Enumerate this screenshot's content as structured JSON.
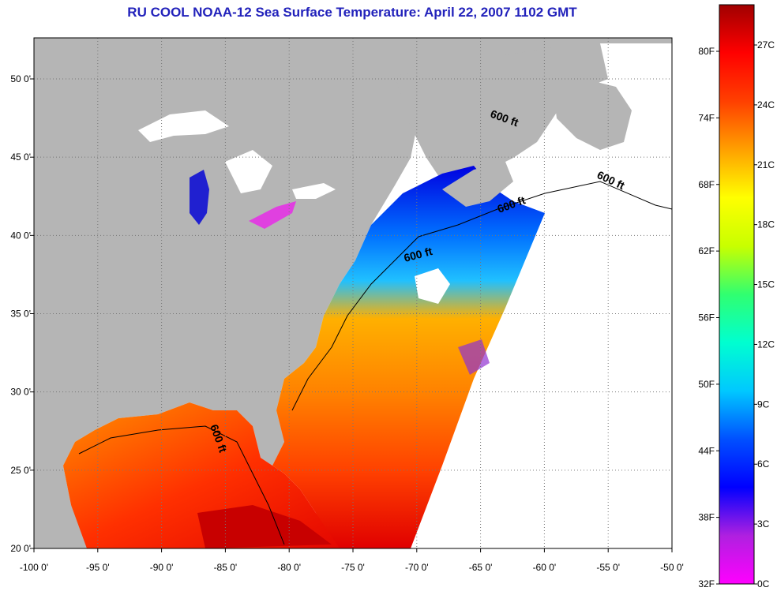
{
  "title": "RU COOL  NOAA-12  Sea Surface Temperature:  April 22, 2007 1102 GMT",
  "map": {
    "lon_labels": [
      "-100 0'",
      "-95 0'",
      "-90 0'",
      "-85 0'",
      "-80 0'",
      "-75 0'",
      "-70 0'",
      "-65 0'",
      "-60 0'",
      "-55 0'",
      "-50 0'"
    ],
    "lat_labels": [
      "50 0'",
      "45 0'",
      "40 0'",
      "35 0'",
      "30 0'",
      "25 0'",
      "20 0'"
    ],
    "isobath_labels": [
      "600 ft",
      "600 ft",
      "600 ft",
      "600 ft",
      "600 ft"
    ],
    "colors": {
      "land": "#b5b5b5",
      "no_data": "#ffffff",
      "grid": "#777777"
    }
  },
  "colorbar": {
    "fahrenheit_labels": [
      "80F",
      "74F",
      "68F",
      "62F",
      "56F",
      "50F",
      "44F",
      "38F",
      "32F"
    ],
    "celsius_labels": [
      "27C",
      "24C",
      "21C",
      "18C",
      "15C",
      "12C",
      "9C",
      "6C",
      "3C",
      "0C"
    ],
    "gradient": [
      "#ff00ff",
      "#b020e0",
      "#0000ff",
      "#0050ff",
      "#00c8ff",
      "#00ffd0",
      "#30ff70",
      "#c8ff00",
      "#ffff00",
      "#ffa000",
      "#ff4000",
      "#ff0000",
      "#a00000"
    ]
  }
}
